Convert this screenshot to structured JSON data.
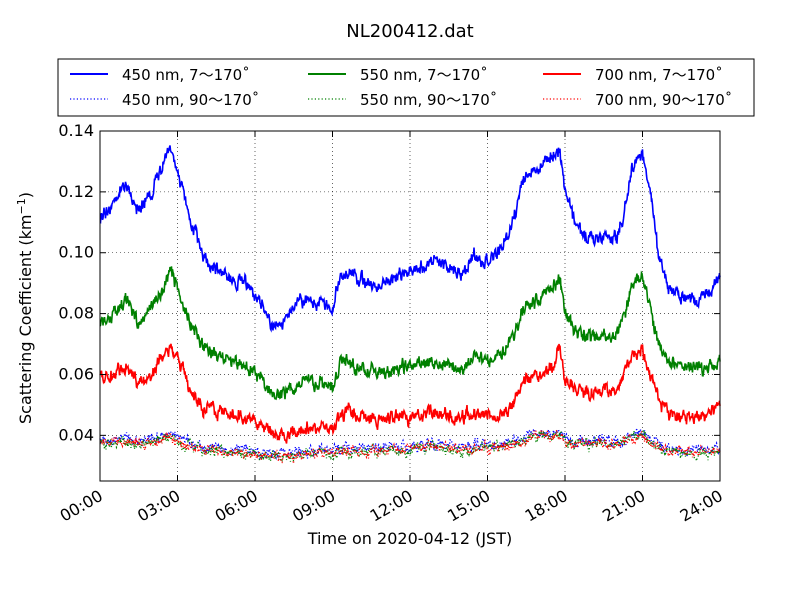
{
  "chart_data": {
    "type": "line",
    "title": "NL200412.dat",
    "xlabel": "Time on 2020-04-12 (JST)",
    "ylabel": "Scattering Coefficient (km",
    "ylabel_sup": "−1",
    "ylabel_end": ")",
    "xlim": [
      0,
      24
    ],
    "ylim": [
      0.025,
      0.14
    ],
    "x_ticks": [
      0,
      3,
      6,
      9,
      12,
      15,
      18,
      21,
      24
    ],
    "x_tick_labels": [
      "00:00",
      "03:00",
      "06:00",
      "09:00",
      "12:00",
      "15:00",
      "18:00",
      "21:00",
      "24:00"
    ],
    "y_ticks": [
      0.04,
      0.06,
      0.08,
      0.1,
      0.12,
      0.14
    ],
    "y_tick_labels": [
      "0.04",
      "0.06",
      "0.08",
      "0.10",
      "0.12",
      "0.14"
    ],
    "grid": true,
    "legend_position": "top",
    "x": [
      0,
      0.5,
      1,
      1.5,
      2,
      2.5,
      2.8,
      3.2,
      3.5,
      4,
      4.5,
      5,
      5.5,
      6,
      6.3,
      6.6,
      7,
      7.5,
      8,
      8.5,
      9,
      9.3,
      9.6,
      10,
      10.5,
      11,
      11.5,
      12,
      12.5,
      13,
      13.5,
      14,
      14.5,
      15,
      15.5,
      16,
      16.3,
      16.6,
      17,
      17.5,
      17.8,
      18,
      18.3,
      18.6,
      19,
      19.5,
      20,
      20.3,
      20.6,
      21,
      21.3,
      21.6,
      22,
      22.5,
      23,
      23.5,
      24
    ],
    "series": [
      {
        "name": "450 nm, 7～170˚",
        "color": "#0000ff",
        "style": "solid",
        "values": [
          0.11,
          0.117,
          0.122,
          0.114,
          0.12,
          0.13,
          0.133,
          0.12,
          0.11,
          0.099,
          0.095,
          0.092,
          0.09,
          0.087,
          0.082,
          0.076,
          0.077,
          0.082,
          0.084,
          0.083,
          0.081,
          0.093,
          0.094,
          0.091,
          0.09,
          0.09,
          0.092,
          0.094,
          0.096,
          0.097,
          0.096,
          0.093,
          0.099,
          0.096,
          0.101,
          0.11,
          0.122,
          0.127,
          0.128,
          0.132,
          0.134,
          0.12,
          0.112,
          0.106,
          0.104,
          0.105,
          0.105,
          0.115,
          0.128,
          0.133,
          0.12,
          0.1,
          0.088,
          0.085,
          0.084,
          0.086,
          0.092
        ]
      },
      {
        "name": "450 nm, 90～170˚",
        "color": "#0000ff",
        "style": "dotted",
        "values": [
          0.038,
          0.039,
          0.039,
          0.038,
          0.039,
          0.04,
          0.04,
          0.038,
          0.037,
          0.036,
          0.036,
          0.035,
          0.035,
          0.035,
          0.034,
          0.034,
          0.034,
          0.034,
          0.035,
          0.035,
          0.035,
          0.036,
          0.036,
          0.036,
          0.036,
          0.036,
          0.036,
          0.036,
          0.037,
          0.037,
          0.037,
          0.036,
          0.037,
          0.037,
          0.037,
          0.038,
          0.039,
          0.04,
          0.041,
          0.041,
          0.041,
          0.039,
          0.038,
          0.038,
          0.038,
          0.038,
          0.038,
          0.039,
          0.04,
          0.041,
          0.039,
          0.037,
          0.036,
          0.035,
          0.035,
          0.035,
          0.036
        ]
      },
      {
        "name": "550 nm, 7～170˚",
        "color": "#008000",
        "style": "solid",
        "values": [
          0.075,
          0.08,
          0.085,
          0.077,
          0.082,
          0.09,
          0.093,
          0.085,
          0.077,
          0.069,
          0.066,
          0.064,
          0.063,
          0.061,
          0.058,
          0.053,
          0.053,
          0.056,
          0.058,
          0.057,
          0.055,
          0.064,
          0.065,
          0.062,
          0.061,
          0.061,
          0.062,
          0.063,
          0.064,
          0.064,
          0.063,
          0.062,
          0.066,
          0.064,
          0.066,
          0.071,
          0.08,
          0.084,
          0.085,
          0.088,
          0.091,
          0.08,
          0.076,
          0.073,
          0.072,
          0.073,
          0.074,
          0.08,
          0.089,
          0.092,
          0.082,
          0.07,
          0.064,
          0.063,
          0.062,
          0.062,
          0.065
        ]
      },
      {
        "name": "550 nm, 90～170˚",
        "color": "#008000",
        "style": "dotted",
        "values": [
          0.037,
          0.037,
          0.038,
          0.037,
          0.038,
          0.039,
          0.039,
          0.037,
          0.036,
          0.035,
          0.035,
          0.034,
          0.034,
          0.034,
          0.033,
          0.033,
          0.033,
          0.033,
          0.034,
          0.034,
          0.034,
          0.035,
          0.035,
          0.035,
          0.035,
          0.035,
          0.035,
          0.035,
          0.036,
          0.036,
          0.036,
          0.035,
          0.036,
          0.036,
          0.036,
          0.037,
          0.038,
          0.039,
          0.04,
          0.04,
          0.04,
          0.038,
          0.037,
          0.037,
          0.037,
          0.037,
          0.037,
          0.038,
          0.039,
          0.04,
          0.038,
          0.036,
          0.035,
          0.034,
          0.034,
          0.034,
          0.035
        ]
      },
      {
        "name": "700 nm, 7～170˚",
        "color": "#ff0000",
        "style": "solid",
        "values": [
          0.058,
          0.06,
          0.062,
          0.057,
          0.06,
          0.066,
          0.068,
          0.062,
          0.055,
          0.049,
          0.048,
          0.047,
          0.046,
          0.045,
          0.044,
          0.041,
          0.04,
          0.041,
          0.042,
          0.043,
          0.041,
          0.047,
          0.048,
          0.046,
          0.045,
          0.045,
          0.046,
          0.046,
          0.047,
          0.047,
          0.047,
          0.046,
          0.047,
          0.046,
          0.047,
          0.05,
          0.056,
          0.059,
          0.06,
          0.062,
          0.068,
          0.059,
          0.056,
          0.054,
          0.054,
          0.055,
          0.055,
          0.06,
          0.067,
          0.068,
          0.06,
          0.052,
          0.047,
          0.046,
          0.046,
          0.047,
          0.049
        ]
      },
      {
        "name": "700 nm, 90～170˚",
        "color": "#ff0000",
        "style": "dotted",
        "values": [
          0.037,
          0.038,
          0.038,
          0.037,
          0.038,
          0.039,
          0.039,
          0.037,
          0.036,
          0.035,
          0.035,
          0.034,
          0.034,
          0.034,
          0.034,
          0.033,
          0.033,
          0.033,
          0.034,
          0.034,
          0.034,
          0.035,
          0.035,
          0.035,
          0.035,
          0.035,
          0.035,
          0.036,
          0.036,
          0.036,
          0.036,
          0.035,
          0.036,
          0.036,
          0.036,
          0.037,
          0.038,
          0.039,
          0.04,
          0.04,
          0.04,
          0.038,
          0.037,
          0.037,
          0.037,
          0.037,
          0.037,
          0.038,
          0.039,
          0.04,
          0.038,
          0.036,
          0.035,
          0.035,
          0.035,
          0.035,
          0.035
        ]
      }
    ]
  }
}
